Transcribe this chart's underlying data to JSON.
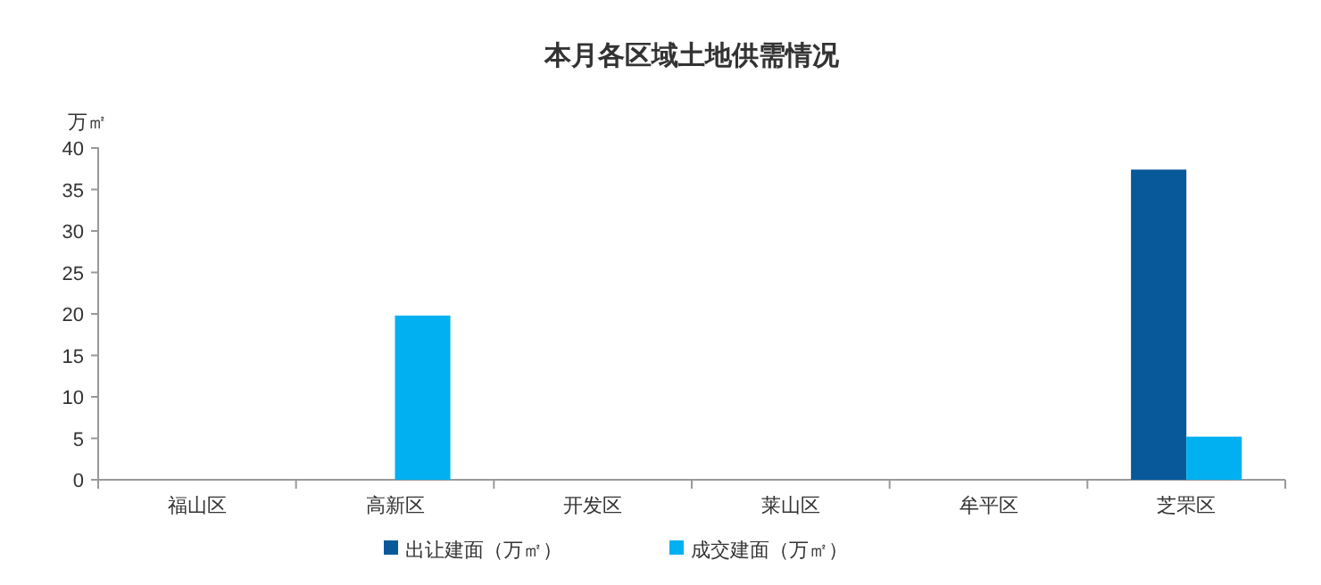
{
  "chart_data": {
    "type": "bar",
    "title": "本月各区域土地供需情况",
    "ylabel": "万㎡",
    "categories": [
      "福山区",
      "高新区",
      "开发区",
      "莱山区",
      "牟平区",
      "芝罘区"
    ],
    "series": [
      {
        "name": "出让建面（万㎡）",
        "color": "#08599a",
        "values": [
          0,
          0,
          0,
          0,
          0,
          37.4
        ]
      },
      {
        "name": "成交建面（万㎡）",
        "color": "#00b0f0",
        "values": [
          0,
          19.8,
          0,
          0,
          0,
          5.2
        ]
      }
    ],
    "ylim": [
      0,
      40
    ],
    "yticks": [
      0,
      5,
      10,
      15,
      20,
      25,
      30,
      35,
      40
    ],
    "grid": false,
    "legend": "bottom"
  }
}
